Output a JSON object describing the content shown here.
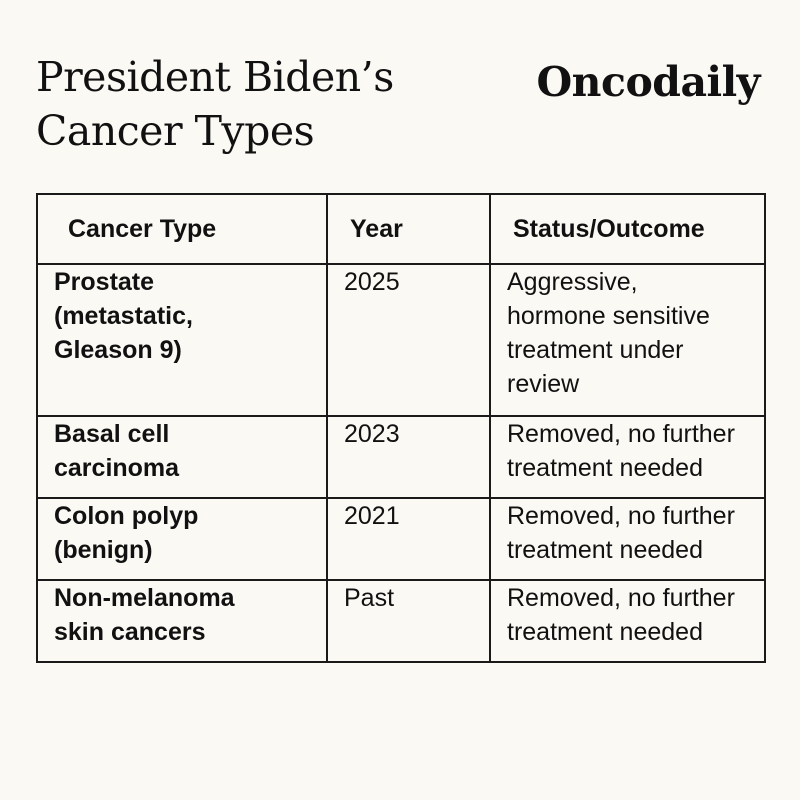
{
  "header": {
    "title_line1": "President Biden’s",
    "title_line2": "Cancer Types",
    "brand": "Oncodaily"
  },
  "table": {
    "headers": {
      "type": "Cancer Type",
      "year": "Year",
      "status": "Status/Outcome"
    },
    "rows": [
      {
        "type_lines": [
          "Prostate",
          "(metastatic,",
          "Gleason 9)"
        ],
        "year": "2025",
        "status_lines": [
          "Aggressive,",
          "hormone sensitive",
          "treatment under",
          "review"
        ]
      },
      {
        "type_lines": [
          "Basal cell",
          "carcinoma"
        ],
        "year": "2023",
        "status_lines": [
          "Removed, no further",
          "treatment needed"
        ]
      },
      {
        "type_lines": [
          "Colon polyp",
          "(benign)"
        ],
        "year": "2021",
        "status_lines": [
          "Removed, no further",
          "treatment needed"
        ]
      },
      {
        "type_lines": [
          "Non-melanoma",
          "skin cancers"
        ],
        "year": "Past",
        "status_lines": [
          "Removed, no further",
          "treatment needed"
        ]
      }
    ]
  }
}
